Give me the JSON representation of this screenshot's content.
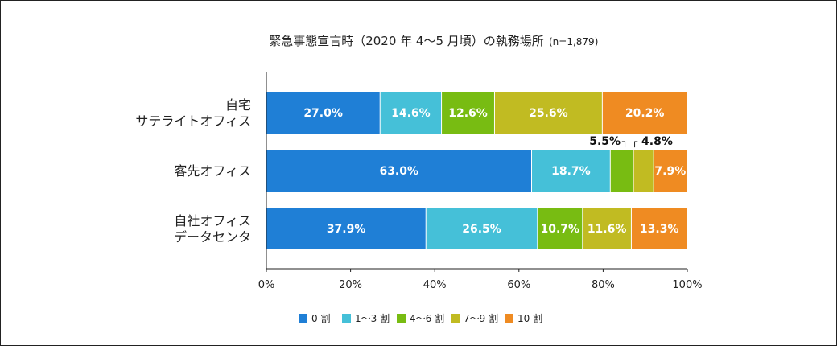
{
  "chart_data": {
    "type": "bar",
    "orientation": "horizontal",
    "stacked": true,
    "title": "緊急事態宣言時（2020 年 4～5 月頃）の執務場所",
    "title_note": "(n=1,879)",
    "categories": [
      [
        "自宅",
        "サテライトオフィス"
      ],
      [
        "客先オフィス"
      ],
      [
        "自社オフィス",
        "データセンタ"
      ]
    ],
    "series": [
      {
        "name": "0 割",
        "color": "#1f7fd6",
        "values": [
          27.0,
          63.0,
          37.9
        ]
      },
      {
        "name": "1～3 割",
        "color": "#45c0d8",
        "values": [
          14.6,
          18.7,
          26.5
        ]
      },
      {
        "name": "4～6 割",
        "color": "#78bc12",
        "values": [
          12.6,
          5.5,
          10.7
        ]
      },
      {
        "name": "7～9 割",
        "color": "#c1bb22",
        "values": [
          25.6,
          4.8,
          11.6
        ]
      },
      {
        "name": "10 割",
        "color": "#ef8b22",
        "values": [
          20.2,
          7.9,
          13.3
        ]
      }
    ],
    "value_labels": [
      [
        "27.0%",
        "14.6%",
        "12.6%",
        "25.6%",
        "20.2%"
      ],
      [
        "63.0%",
        "18.7%",
        "",
        "",
        "7.9%"
      ],
      [
        "37.9%",
        "26.5%",
        "10.7%",
        "11.6%",
        "13.3%"
      ]
    ],
    "callouts": [
      {
        "row": 1,
        "series": 2,
        "text": "5.5%",
        "mark": "┐",
        "side": "left"
      },
      {
        "row": 1,
        "series": 3,
        "text": "4.8%",
        "mark": "┌",
        "side": "right"
      }
    ],
    "xlim": [
      0,
      100
    ],
    "xticks": [
      "0%",
      "20%",
      "40%",
      "60%",
      "80%",
      "100%"
    ],
    "grid": false,
    "legend_position": "bottom"
  }
}
